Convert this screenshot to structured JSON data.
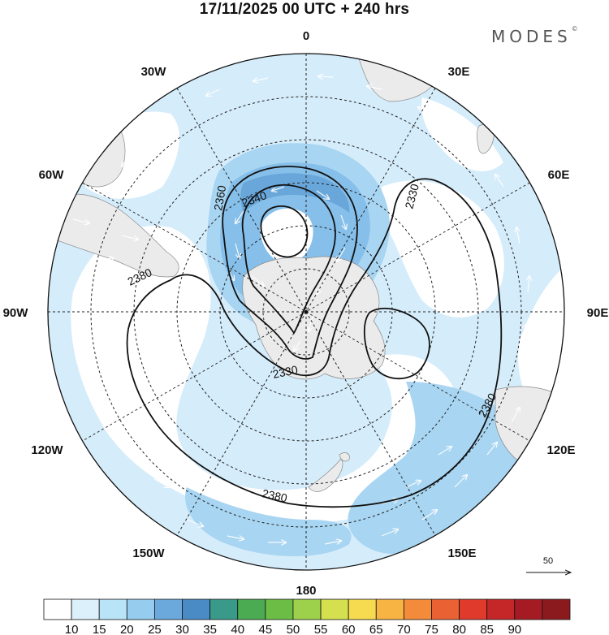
{
  "title": "17/11/2025  00 UTC  + 240 hrs",
  "brand": "MODES",
  "brand_mark": "©",
  "longitude_labels": {
    "lon_0": "0",
    "lon_30e": "30E",
    "lon_60e": "60E",
    "lon_90e": "90E",
    "lon_120e": "120E",
    "lon_150e": "150E",
    "lon_180": "180",
    "lon_150w": "150W",
    "lon_120w": "120W",
    "lon_90w": "90W",
    "lon_60w": "60W",
    "lon_30w": "30W"
  },
  "contour_labels": {
    "c2360": "2360",
    "c2340": "2340",
    "c2330_ne": "2330",
    "c2380_w": "2380",
    "c2330_s": "2330",
    "c2380_e": "2380",
    "c2380_s": "2380"
  },
  "reference_vector": "50",
  "colorbar": {
    "ticks": [
      "10",
      "15",
      "20",
      "25",
      "30",
      "35",
      "40",
      "45",
      "50",
      "55",
      "60",
      "65",
      "70",
      "75",
      "80",
      "85",
      "90"
    ],
    "colors": [
      "#ffffff",
      "#dcf0fb",
      "#b9e3f7",
      "#96cdee",
      "#6ba9dd",
      "#4a8bc6",
      "#3a9a8a",
      "#4aab52",
      "#6cbd45",
      "#9ed14b",
      "#d5e04e",
      "#f6da4f",
      "#f8b443",
      "#f38b3b",
      "#ea6233",
      "#df3a2c",
      "#c52729",
      "#a41b24",
      "#8a1a1e"
    ]
  },
  "colors": {
    "land": "#ebebeb",
    "shade_light": "#d5ecfa",
    "shade_mid": "#a8d5f2",
    "shade_strong": "#86bfe9",
    "shade_core": "#5f9fd6",
    "grid": "#222222"
  }
}
